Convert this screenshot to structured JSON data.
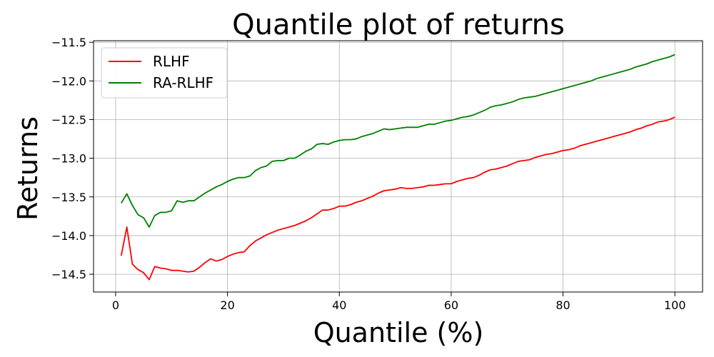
{
  "chart_data": {
    "type": "line",
    "title": "Quantile plot of returns",
    "xlabel": "Quantile (%)",
    "ylabel": "Returns",
    "xlim": [
      -3.95,
      104.95
    ],
    "ylim": [
      -14.73,
      -11.48
    ],
    "xticks": [
      0,
      20,
      40,
      60,
      80,
      100
    ],
    "yticks": [
      -14.5,
      -14.0,
      -13.5,
      -13.0,
      -12.5,
      -12.0,
      -11.5
    ],
    "xtick_labels": [
      "0",
      "20",
      "40",
      "60",
      "80",
      "100"
    ],
    "ytick_labels": [
      "−14.5",
      "−14.0",
      "−13.5",
      "−13.0",
      "−12.5",
      "−12.0",
      "−11.5"
    ],
    "grid": true,
    "legend": "top-left",
    "x": [
      1,
      2,
      3,
      4,
      5,
      6,
      7,
      8,
      9,
      10,
      11,
      12,
      13,
      14,
      15,
      16,
      17,
      18,
      19,
      20,
      21,
      22,
      23,
      24,
      25,
      26,
      27,
      28,
      29,
      30,
      31,
      32,
      33,
      34,
      35,
      36,
      37,
      38,
      39,
      40,
      41,
      42,
      43,
      44,
      45,
      46,
      47,
      48,
      49,
      50,
      51,
      52,
      53,
      54,
      55,
      56,
      57,
      58,
      59,
      60,
      61,
      62,
      63,
      64,
      65,
      66,
      67,
      68,
      69,
      70,
      71,
      72,
      73,
      74,
      75,
      76,
      77,
      78,
      79,
      80,
      81,
      82,
      83,
      84,
      85,
      86,
      87,
      88,
      89,
      90,
      91,
      92,
      93,
      94,
      95,
      96,
      97,
      98,
      99,
      100
    ],
    "series": [
      {
        "name": "RLHF",
        "color": "#ff0000",
        "values": [
          -14.26,
          -13.89,
          -14.37,
          -14.44,
          -14.48,
          -14.57,
          -14.4,
          -14.42,
          -14.43,
          -14.45,
          -14.45,
          -14.46,
          -14.47,
          -14.46,
          -14.41,
          -14.35,
          -14.3,
          -14.33,
          -14.31,
          -14.27,
          -14.24,
          -14.22,
          -14.21,
          -14.13,
          -14.07,
          -14.03,
          -13.99,
          -13.96,
          -13.93,
          -13.91,
          -13.89,
          -13.87,
          -13.84,
          -13.81,
          -13.77,
          -13.72,
          -13.67,
          -13.67,
          -13.65,
          -13.62,
          -13.62,
          -13.6,
          -13.57,
          -13.55,
          -13.52,
          -13.49,
          -13.45,
          -13.42,
          -13.41,
          -13.4,
          -13.38,
          -13.39,
          -13.39,
          -13.38,
          -13.37,
          -13.35,
          -13.35,
          -13.34,
          -13.33,
          -13.33,
          -13.3,
          -13.28,
          -13.26,
          -13.25,
          -13.22,
          -13.18,
          -13.15,
          -13.14,
          -13.12,
          -13.1,
          -13.07,
          -13.04,
          -13.03,
          -13.02,
          -12.99,
          -12.97,
          -12.95,
          -12.94,
          -12.92,
          -12.9,
          -12.89,
          -12.87,
          -12.84,
          -12.82,
          -12.8,
          -12.78,
          -12.76,
          -12.74,
          -12.72,
          -12.7,
          -12.68,
          -12.66,
          -12.63,
          -12.61,
          -12.58,
          -12.56,
          -12.53,
          -12.52,
          -12.5,
          -12.47
        ]
      },
      {
        "name": "RA-RLHF",
        "color": "#008000",
        "values": [
          -13.58,
          -13.46,
          -13.61,
          -13.73,
          -13.77,
          -13.89,
          -13.74,
          -13.7,
          -13.7,
          -13.68,
          -13.55,
          -13.57,
          -13.55,
          -13.55,
          -13.5,
          -13.45,
          -13.41,
          -13.37,
          -13.34,
          -13.3,
          -13.27,
          -13.25,
          -13.25,
          -13.23,
          -13.16,
          -13.12,
          -13.1,
          -13.04,
          -13.03,
          -13.03,
          -13.0,
          -13.0,
          -12.96,
          -12.91,
          -12.88,
          -12.82,
          -12.81,
          -12.82,
          -12.79,
          -12.77,
          -12.76,
          -12.76,
          -12.75,
          -12.72,
          -12.7,
          -12.68,
          -12.65,
          -12.62,
          -12.63,
          -12.62,
          -12.61,
          -12.6,
          -12.6,
          -12.6,
          -12.58,
          -12.56,
          -12.56,
          -12.54,
          -12.52,
          -12.51,
          -12.49,
          -12.47,
          -12.46,
          -12.44,
          -12.41,
          -12.38,
          -12.34,
          -12.32,
          -12.31,
          -12.29,
          -12.27,
          -12.24,
          -12.22,
          -12.21,
          -12.2,
          -12.18,
          -12.16,
          -12.14,
          -12.12,
          -12.1,
          -12.08,
          -12.06,
          -12.04,
          -12.02,
          -12.0,
          -11.97,
          -11.95,
          -11.93,
          -11.91,
          -11.89,
          -11.87,
          -11.85,
          -11.82,
          -11.8,
          -11.78,
          -11.75,
          -11.73,
          -11.71,
          -11.69,
          -11.66
        ]
      }
    ]
  }
}
